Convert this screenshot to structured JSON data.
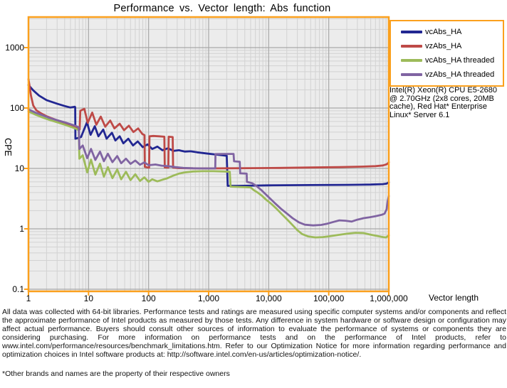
{
  "title": "Performance vs. Vector length: Abs function",
  "system_info": "Intel(R) Xeon(R) CPU E5-2680 @ 2.70GHz (2x8 cores, 20MB cache), Red Hat* Enterprise Linux* Server 6.1",
  "footer": {
    "disclaimer": "All data was collected with 64-bit libraries. Performance tests and ratings are measured using specific computer systems and/or components and reflect the approximate performance of Intel products as measured by those tests. Any difference in system hardware or software design or configuration may affect actual performance. Buyers should consult other sources of information to evaluate the performance of systems or components they are considering purchasing. For more information on performance tests and on the performance of Intel products, refer to www.intel.com/performance/resources/benchmark_limitations.htm. Refer to our Optimization Notice for more information regarding performance and optimization choices in Intel software products at: http://software.intel.com/en-us/articles/optimization-notice/.",
    "trademark": "*Other brands and names are the property of their respective owners"
  },
  "chart_data": {
    "type": "line",
    "title": "Performance vs. Vector length: Abs function",
    "xlabel": "Vector length",
    "ylabel": "CPE",
    "x_scale": "log",
    "y_scale": "log",
    "xlim": [
      1,
      1000000
    ],
    "ylim": [
      0.1,
      3200
    ],
    "x_ticks": [
      "1",
      "10",
      "100",
      "1,000",
      "10,000",
      "100,000",
      "1,000,000"
    ],
    "y_ticks": [
      "1000",
      "100",
      "10",
      "1",
      "0.1"
    ],
    "grid": true,
    "legend_position": "top-right",
    "frame_color": "#FBA01D",
    "plot_bg": "#ECECEC",
    "grid_minor_color": "#D2D2D2",
    "grid_major_color": "#A8A8A8",
    "series": [
      {
        "name": "vcAbs_HA",
        "color": "#222792",
        "points": [
          [
            1,
            240
          ],
          [
            1.2,
            196
          ],
          [
            1.5,
            160
          ],
          [
            2,
            135
          ],
          [
            3,
            118
          ],
          [
            4,
            108
          ],
          [
            5,
            102
          ],
          [
            5.9,
            105
          ],
          [
            6,
            103
          ],
          [
            6.05,
            31
          ],
          [
            7.5,
            33
          ],
          [
            9.4,
            58
          ],
          [
            10.8,
            36
          ],
          [
            12.7,
            50
          ],
          [
            14.6,
            34
          ],
          [
            17.6,
            44
          ],
          [
            20,
            31
          ],
          [
            24.5,
            39
          ],
          [
            28,
            29
          ],
          [
            33,
            34
          ],
          [
            38,
            26
          ],
          [
            46,
            31
          ],
          [
            55,
            24
          ],
          [
            66,
            28
          ],
          [
            80,
            22.5
          ],
          [
            96,
            25
          ],
          [
            115,
            21
          ],
          [
            140,
            23
          ],
          [
            170,
            20
          ],
          [
            210,
            21.5
          ],
          [
            260,
            19.5
          ],
          [
            320,
            20
          ],
          [
            400,
            19
          ],
          [
            500,
            19.2
          ],
          [
            640,
            18.5
          ],
          [
            800,
            18
          ],
          [
            1000,
            17.5
          ],
          [
            1300,
            17
          ],
          [
            1700,
            16.5
          ],
          [
            2000,
            16.2
          ],
          [
            2080,
            5.15
          ],
          [
            3000,
            5.15
          ],
          [
            6000,
            5.2
          ],
          [
            10000,
            5.25
          ],
          [
            50000,
            5.3
          ],
          [
            200000,
            5.35
          ],
          [
            500000,
            5.4
          ],
          [
            800000,
            5.5
          ],
          [
            920000,
            5.6
          ],
          [
            1000000,
            5.9
          ]
        ]
      },
      {
        "name": "vzAbs_HA",
        "color": "#BE4A47",
        "points": [
          [
            1,
            300
          ],
          [
            1.03,
            250
          ],
          [
            1.1,
            160
          ],
          [
            1.2,
            110
          ],
          [
            1.35,
            92
          ],
          [
            1.6,
            82
          ],
          [
            2,
            73
          ],
          [
            2.6,
            66
          ],
          [
            3.4,
            60
          ],
          [
            4.4,
            55
          ],
          [
            5.5,
            51
          ],
          [
            6.5,
            48
          ],
          [
            7,
            45
          ],
          [
            7.1,
            44
          ],
          [
            7.3,
            90
          ],
          [
            8.5,
            97
          ],
          [
            9.7,
            57
          ],
          [
            11.5,
            84
          ],
          [
            13.5,
            53
          ],
          [
            16,
            72
          ],
          [
            19,
            49
          ],
          [
            23,
            62
          ],
          [
            27,
            46
          ],
          [
            33,
            55
          ],
          [
            39,
            43
          ],
          [
            47,
            51
          ],
          [
            56,
            40
          ],
          [
            67,
            46
          ],
          [
            79,
            37
          ],
          [
            84,
            36
          ],
          [
            85.5,
            35.5
          ],
          [
            86.5,
            10.6
          ],
          [
            99,
            10.3
          ],
          [
            102,
            10.3
          ],
          [
            103.5,
            34
          ],
          [
            120,
            34.5
          ],
          [
            150,
            34
          ],
          [
            183,
            33.5
          ],
          [
            186,
            10.4
          ],
          [
            213,
            10.3
          ],
          [
            216,
            33.5
          ],
          [
            252,
            33
          ],
          [
            256,
            10.3
          ],
          [
            320,
            10.1
          ],
          [
            500,
            10.05
          ],
          [
            1000,
            10
          ],
          [
            2000,
            10.05
          ],
          [
            5000,
            10.1
          ],
          [
            15000,
            10.2
          ],
          [
            50000,
            10.35
          ],
          [
            150000,
            10.5
          ],
          [
            350000,
            10.7
          ],
          [
            600000,
            10.9
          ],
          [
            800000,
            11.2
          ],
          [
            920000,
            11.7
          ],
          [
            970000,
            12.2
          ],
          [
            1000000,
            12.7
          ]
        ]
      },
      {
        "name": "vcAbs_HA threaded",
        "color": "#9DBB5A",
        "points": [
          [
            1,
            88
          ],
          [
            1.3,
            78
          ],
          [
            1.7,
            70
          ],
          [
            2.2,
            64
          ],
          [
            3,
            58
          ],
          [
            4,
            53
          ],
          [
            5,
            49
          ],
          [
            6,
            46
          ],
          [
            6.9,
            43
          ],
          [
            7.05,
            14.5
          ],
          [
            8,
            16.5
          ],
          [
            9.5,
            8.6
          ],
          [
            11,
            14
          ],
          [
            13,
            7.9
          ],
          [
            15.5,
            12
          ],
          [
            18,
            7.3
          ],
          [
            21,
            10.5
          ],
          [
            25,
            6.9
          ],
          [
            30,
            9.6
          ],
          [
            35,
            6.6
          ],
          [
            42,
            8.8
          ],
          [
            50,
            6.4
          ],
          [
            60,
            8
          ],
          [
            72,
            6.2
          ],
          [
            85,
            7.1
          ],
          [
            100,
            6
          ],
          [
            115,
            6.6
          ],
          [
            140,
            6.1
          ],
          [
            170,
            6.5
          ],
          [
            200,
            6.8
          ],
          [
            250,
            7.5
          ],
          [
            320,
            8.2
          ],
          [
            400,
            8.6
          ],
          [
            550,
            8.9
          ],
          [
            800,
            9
          ],
          [
            1200,
            9
          ],
          [
            1800,
            8.9
          ],
          [
            2250,
            8.8
          ],
          [
            2320,
            5
          ],
          [
            3000,
            4.95
          ],
          [
            4000,
            4.9
          ],
          [
            5000,
            4.85
          ],
          [
            5600,
            4.4
          ],
          [
            6500,
            4
          ],
          [
            7800,
            3.5
          ],
          [
            9000,
            3.05
          ],
          [
            11000,
            2.6
          ],
          [
            13500,
            2.15
          ],
          [
            16500,
            1.75
          ],
          [
            20000,
            1.45
          ],
          [
            25000,
            1.15
          ],
          [
            30000,
            0.95
          ],
          [
            36000,
            0.82
          ],
          [
            45000,
            0.75
          ],
          [
            60000,
            0.72
          ],
          [
            80000,
            0.73
          ],
          [
            100000,
            0.75
          ],
          [
            140000,
            0.79
          ],
          [
            200000,
            0.83
          ],
          [
            280000,
            0.86
          ],
          [
            380000,
            0.85
          ],
          [
            500000,
            0.8
          ],
          [
            650000,
            0.76
          ],
          [
            800000,
            0.73
          ],
          [
            900000,
            0.72
          ],
          [
            1000000,
            0.78
          ]
        ]
      },
      {
        "name": "vzAbs_HA threaded",
        "color": "#8064A2",
        "points": [
          [
            1,
            95
          ],
          [
            1.3,
            84
          ],
          [
            1.7,
            76
          ],
          [
            2.2,
            69
          ],
          [
            3,
            63
          ],
          [
            4,
            58
          ],
          [
            5,
            54
          ],
          [
            6,
            51
          ],
          [
            6.9,
            48
          ],
          [
            7.05,
            21
          ],
          [
            8,
            24
          ],
          [
            9.5,
            14.8
          ],
          [
            11,
            21
          ],
          [
            13,
            13.8
          ],
          [
            15.5,
            19
          ],
          [
            18,
            13.2
          ],
          [
            21,
            17.5
          ],
          [
            25,
            12.7
          ],
          [
            30,
            16
          ],
          [
            35,
            12.2
          ],
          [
            42,
            14.5
          ],
          [
            50,
            11.9
          ],
          [
            60,
            13.5
          ],
          [
            72,
            11.5
          ],
          [
            85,
            12.6
          ],
          [
            100,
            11.3
          ],
          [
            130,
            11.6
          ],
          [
            165,
            11.1
          ],
          [
            210,
            10.9
          ],
          [
            280,
            10.5
          ],
          [
            380,
            10.2
          ],
          [
            550,
            10.05
          ],
          [
            800,
            10
          ],
          [
            1290,
            10
          ],
          [
            1300,
            17.3
          ],
          [
            1800,
            17.4
          ],
          [
            2600,
            17.4
          ],
          [
            2650,
            13.1
          ],
          [
            3300,
            12.9
          ],
          [
            3350,
            8.3
          ],
          [
            4300,
            8.2
          ],
          [
            4350,
            6
          ],
          [
            5300,
            5.7
          ],
          [
            6300,
            5.1
          ],
          [
            7500,
            4.4
          ],
          [
            9000,
            3.7
          ],
          [
            10800,
            3.1
          ],
          [
            13000,
            2.6
          ],
          [
            16000,
            2.15
          ],
          [
            20000,
            1.8
          ],
          [
            25000,
            1.5
          ],
          [
            32000,
            1.28
          ],
          [
            40000,
            1.17
          ],
          [
            55000,
            1.14
          ],
          [
            75000,
            1.16
          ],
          [
            95000,
            1.22
          ],
          [
            120000,
            1.3
          ],
          [
            150000,
            1.38
          ],
          [
            190000,
            1.36
          ],
          [
            240000,
            1.32
          ],
          [
            300000,
            1.42
          ],
          [
            380000,
            1.5
          ],
          [
            480000,
            1.55
          ],
          [
            600000,
            1.62
          ],
          [
            750000,
            1.7
          ],
          [
            850000,
            1.78
          ],
          [
            920000,
            2.1
          ],
          [
            960000,
            2.9
          ],
          [
            1000000,
            3.5
          ]
        ]
      }
    ]
  }
}
